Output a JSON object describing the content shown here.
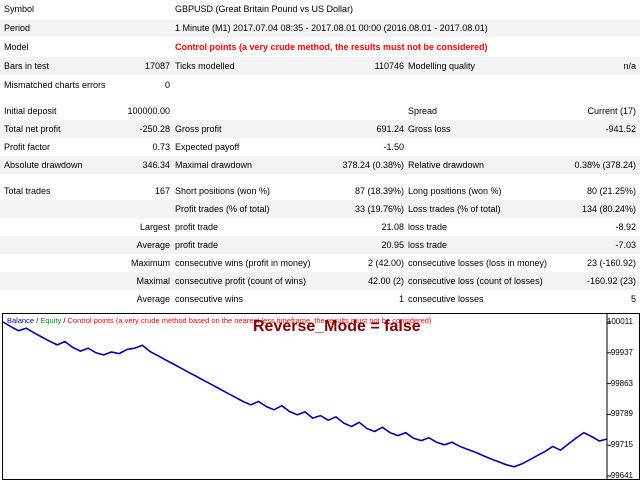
{
  "header": {
    "symbol_label": "Symbol",
    "symbol_value": "GBPUSD (Great Britain Pound vs US Dollar)",
    "period_label": "Period",
    "period_value": "1 Minute (M1) 2017.07.04 08:35 - 2017.08.01 00:00 (2016.08.01 - 2017.08.01)",
    "model_label": "Model",
    "model_value": "Control points (a very crude method, the results must not be considered)",
    "bars_label": "Bars in test",
    "bars_value": "17087",
    "ticks_label": "Ticks modelled",
    "ticks_value": "110746",
    "quality_label": "Modelling quality",
    "quality_value": "n/a",
    "mismatch_label": "Mismatched charts errors",
    "mismatch_value": "0"
  },
  "stats": {
    "initial_deposit_label": "Initial deposit",
    "initial_deposit_value": "100000.00",
    "spread_label": "Spread",
    "spread_value": "Current (17)",
    "net_profit_label": "Total net profit",
    "net_profit_value": "-250.28",
    "gross_profit_label": "Gross profit",
    "gross_profit_value": "691.24",
    "gross_loss_label": "Gross loss",
    "gross_loss_value": "-941.52",
    "profit_factor_label": "Profit factor",
    "profit_factor_value": "0.73",
    "expected_payoff_label": "Expected payoff",
    "expected_payoff_value": "-1.50",
    "abs_drawdown_label": "Absolute drawdown",
    "abs_drawdown_value": "346.34",
    "max_drawdown_label": "Maximal drawdown",
    "max_drawdown_value": "378.24 (0.38%)",
    "rel_drawdown_label": "Relative drawdown",
    "rel_drawdown_value": "0.38% (378.24)",
    "total_trades_label": "Total trades",
    "total_trades_value": "167",
    "short_label": "Short positions (won %)",
    "short_value": "87 (18.39%)",
    "long_label": "Long positions (won %)",
    "long_value": "80 (21.25%)",
    "profit_trades_label": "Profit trades (% of total)",
    "profit_trades_value": "33 (19.76%)",
    "loss_trades_label": "Loss trades (% of total)",
    "loss_trades_value": "134 (80.24%)",
    "largest_label": "Largest",
    "largest_profit_label": "profit trade",
    "largest_profit_value": "21.08",
    "largest_loss_label": "loss trade",
    "largest_loss_value": "-8.92",
    "average_label": "Average",
    "average_profit_label": "profit trade",
    "average_profit_value": "20.95",
    "average_loss_label": "loss trade",
    "average_loss_value": "-7.03",
    "maximum_label": "Maximum",
    "max_cons_wins_label": "consecutive wins (profit in money)",
    "max_cons_wins_value": "2 (42.00)",
    "max_cons_losses_label": "consecutive losses (loss in money)",
    "max_cons_losses_value": "23 (-160.92)",
    "maximal_label": "Maximal",
    "maximal_cons_profit_label": "consecutive profit (count of wins)",
    "maximal_cons_profit_value": "42.00 (2)",
    "maximal_cons_loss_label": "consecutive loss (count of losses)",
    "maximal_cons_loss_value": "-160.92 (23)",
    "avg_cons_label": "Average",
    "avg_cons_wins_label": "consecutive wins",
    "avg_cons_wins_value": "1",
    "avg_cons_losses_label": "consecutive losses",
    "avg_cons_losses_value": "5"
  },
  "chart": {
    "legend_balance": "Balance",
    "legend_sep1": " / ",
    "legend_equity": "Equity",
    "legend_sep2": " / ",
    "legend_cp": "Control points (a very crude method based on the nearest less timeframe, the results must not be considered)",
    "overlay_text": "Reverse_Mode = false",
    "colors": {
      "balance": "#0000b0",
      "equity": "#00a000",
      "overlay": "#800000"
    }
  },
  "chart_data": {
    "type": "line",
    "y_ticks": [
      "100011",
      "99937",
      "99863",
      "99789",
      "99715",
      "99641"
    ],
    "ylim": [
      99641,
      100011
    ],
    "series": [
      {
        "name": "Balance",
        "values": [
          100011,
          100000,
          99990,
          99996,
          99985,
          99975,
          99965,
          99956,
          99964,
          99950,
          99941,
          99948,
          99937,
          99932,
          99939,
          99935,
          99945,
          99948,
          99955,
          99940,
          99930,
          99920,
          99910,
          99900,
          99890,
          99880,
          99870,
          99860,
          99850,
          99840,
          99830,
          99820,
          99812,
          99820,
          99808,
          99800,
          99810,
          99796,
          99788,
          99795,
          99780,
          99786,
          99775,
          99783,
          99768,
          99760,
          99770,
          99755,
          99748,
          99758,
          99745,
          99738,
          99745,
          99732,
          99726,
          99733,
          99722,
          99716,
          99722,
          99712,
          99705,
          99698,
          99690,
          99682,
          99675,
          99668,
          99663,
          99670,
          99680,
          99690,
          99700,
          99712,
          99703,
          99718,
          99732,
          99745,
          99736,
          99725,
          99730
        ]
      }
    ]
  }
}
